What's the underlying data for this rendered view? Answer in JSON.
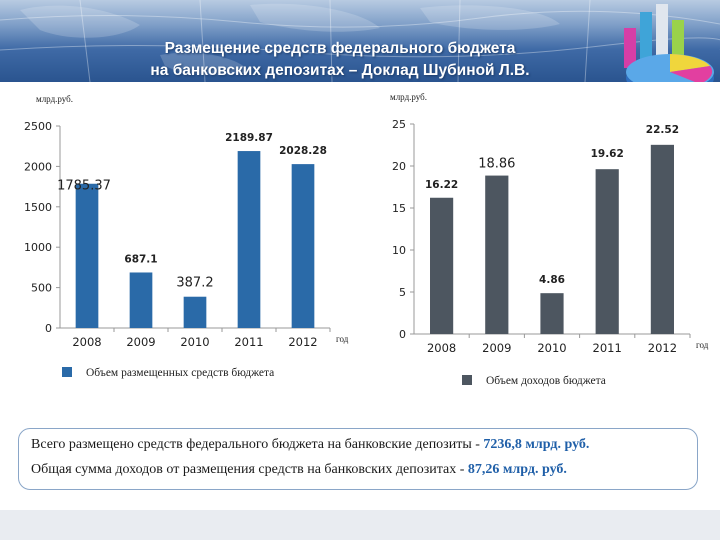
{
  "header": {
    "title_line1": "Размещение средств федерального бюджета",
    "title_line2": "на банковских депозитах – Доклад Шубиной Л.В."
  },
  "colors": {
    "bar_left": "#2a6aa8",
    "bar_right": "#4d5660",
    "accent_text": "#1f5fa8"
  },
  "chart_data": [
    {
      "type": "bar",
      "title": "",
      "ylabel": "млрд.руб.",
      "xlabel": "год",
      "categories": [
        "2008",
        "2009",
        "2010",
        "2011",
        "2012"
      ],
      "values": [
        1785.37,
        687.1,
        387.2,
        2189.87,
        2028.28
      ],
      "data_labels": [
        "1785.37",
        "687.1",
        "387.2",
        "2189.87",
        "2028.28"
      ],
      "ylim": [
        0,
        2500
      ],
      "yticks": [
        0,
        500,
        1000,
        1500,
        2000,
        2500
      ],
      "legend": "Объем размещенных средств бюджета"
    },
    {
      "type": "bar",
      "title": "",
      "ylabel": "млрд.руб.",
      "xlabel": "год",
      "categories": [
        "2008",
        "2009",
        "2010",
        "2011",
        "2012"
      ],
      "values": [
        16.22,
        18.86,
        4.86,
        19.62,
        22.52
      ],
      "data_labels": [
        "16.22",
        "18.86",
        "4.86",
        "19.62",
        "22.52"
      ],
      "ylim": [
        0,
        25
      ],
      "yticks": [
        0,
        5,
        10,
        15,
        20,
        25
      ],
      "legend": "Объем доходов бюджета"
    }
  ],
  "summary": {
    "line1_text": "Всего размещено средств  федерального бюджета на банковские депозиты - ",
    "line1_value": "7236,8 млрд. руб.",
    "line2_text": "Общая сумма доходов от размещения средств на банковских депозитах -  ",
    "line2_value": "87,26 млрд. руб."
  }
}
